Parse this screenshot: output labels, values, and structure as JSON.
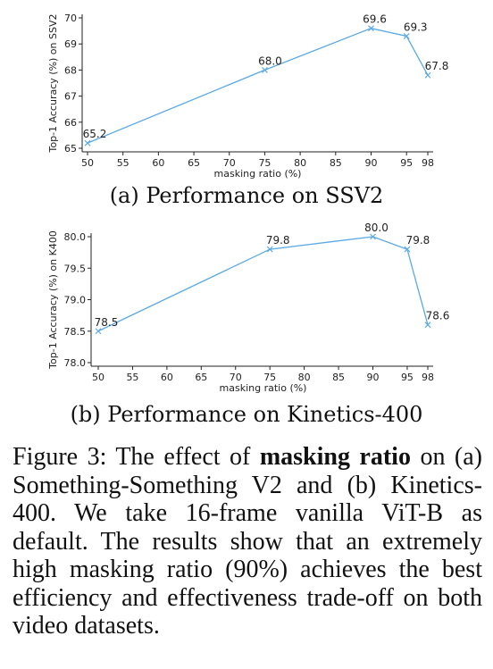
{
  "chart_data": [
    {
      "type": "line",
      "caption": "(a) Performance on SSV2",
      "xlabel": "masking ratio (%)",
      "ylabel": "Top-1 Accuracy (%) on SSV2",
      "x_ticks": [
        50,
        55,
        60,
        65,
        70,
        75,
        80,
        85,
        90,
        95,
        98
      ],
      "y_ticks": [
        "65",
        "66",
        "67",
        "68",
        "69",
        "70"
      ],
      "ylim": [
        65,
        70
      ],
      "xlim": [
        50,
        98
      ],
      "series": [
        {
          "x": [
            50,
            75,
            90,
            95,
            98
          ],
          "values": [
            65.2,
            68.0,
            69.6,
            69.3,
            67.8
          ],
          "labels": [
            "65.2",
            "68.0",
            "69.6",
            "69.3",
            "67.8"
          ]
        }
      ],
      "color": "#5aa9e6",
      "grid": false
    },
    {
      "type": "line",
      "caption": "(b) Performance on Kinetics-400",
      "xlabel": "masking ratio (%)",
      "ylabel": "Top-1 Accuracy (%) on K400",
      "x_ticks": [
        50,
        55,
        60,
        65,
        70,
        75,
        80,
        85,
        90,
        95,
        98
      ],
      "y_ticks": [
        "78.0",
        "78.5",
        "79.0",
        "79.5",
        "80.0"
      ],
      "ylim": [
        78.0,
        80.0
      ],
      "xlim": [
        50,
        98
      ],
      "series": [
        {
          "x": [
            50,
            75,
            90,
            95,
            98
          ],
          "values": [
            78.5,
            79.8,
            80.0,
            79.8,
            78.6
          ],
          "labels": [
            "78.5",
            "79.8",
            "80.0",
            "79.8",
            "78.6"
          ]
        }
      ],
      "color": "#5aa9e6",
      "grid": false
    }
  ],
  "figure_caption": {
    "prefix": "Figure 3:  The effect of ",
    "bold": "masking ratio",
    "suffix": " on (a) Something-Something V2 and (b) Kinetics-400. We take 16-frame vanilla ViT-B as default. The results show that an extremely high masking ratio (90%) achieves the best efficiency and effectiveness trade-off on both video datasets."
  }
}
